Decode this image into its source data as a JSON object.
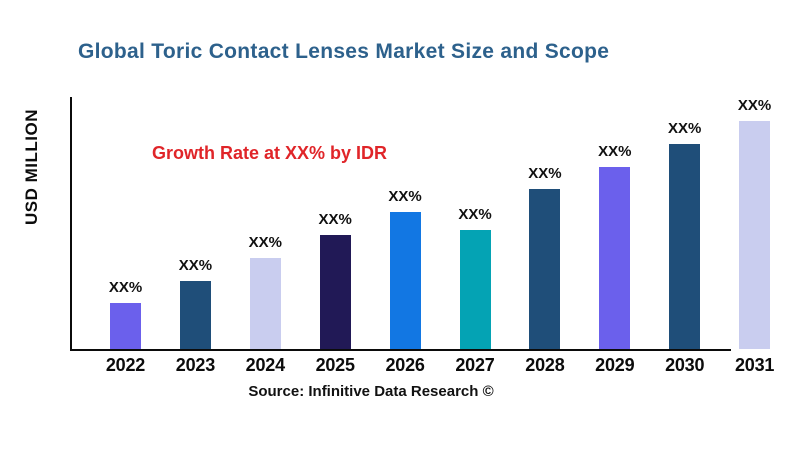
{
  "chart_data": {
    "type": "bar",
    "title": "Global Toric Contact Lenses Market Size and Scope",
    "title_color": "#2D618C",
    "y_axis_label": "USD MILLION",
    "xlabel": "",
    "annotation": "Growth Rate at XX% by IDR",
    "annotation_color": "#E02529",
    "source": "Source: Infinitive Data Research ©",
    "categories": [
      "2022",
      "2023",
      "2024",
      "2025",
      "2026",
      "2027",
      "2028",
      "2029",
      "2030",
      "2031"
    ],
    "value_labels": [
      "XX%",
      "XX%",
      "XX%",
      "XX%",
      "XX%",
      "XX%",
      "XX%",
      "XX%",
      "XX%",
      "XX%"
    ],
    "values_relative": [
      20,
      30,
      40,
      50,
      60,
      52,
      70,
      80,
      90,
      100
    ],
    "ylim": [
      0,
      100
    ],
    "bar_colors": [
      "#6B60EC",
      "#1F4E79",
      "#C9CDEF",
      "#211956",
      "#1277E3",
      "#04A3B4",
      "#1F4E79",
      "#6B60EC",
      "#1F4E79",
      "#C9CDEF"
    ],
    "axis_color": "#0B0B0B",
    "label_text_color": "#111111",
    "grid": false,
    "legend_position": "none"
  }
}
